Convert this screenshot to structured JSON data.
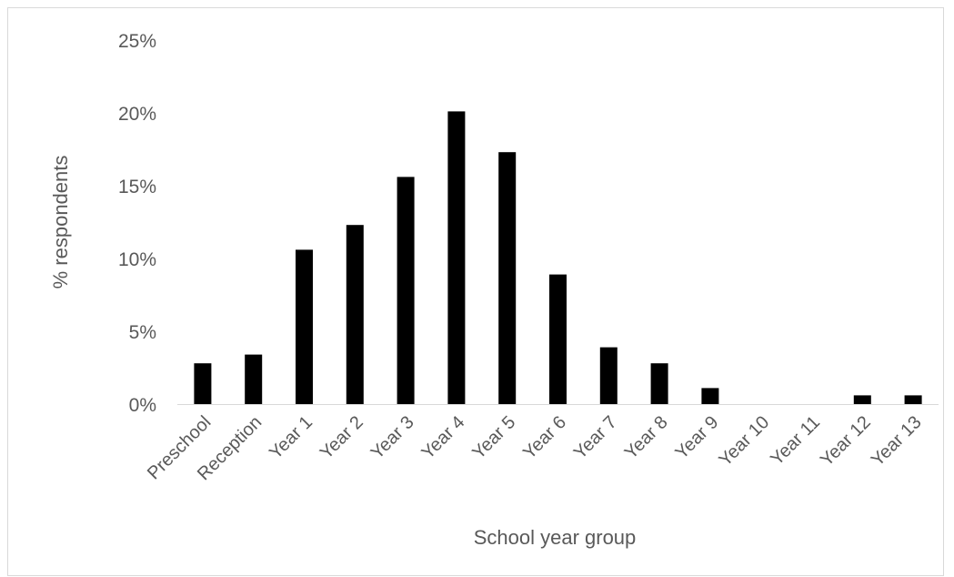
{
  "chart_data": {
    "type": "bar",
    "title": "",
    "xlabel": "School year group",
    "ylabel": "% respondents",
    "categories": [
      "Preschool",
      "Reception",
      "Year 1",
      "Year 2",
      "Year 3",
      "Year 4",
      "Year 5",
      "Year 6",
      "Year 7",
      "Year 8",
      "Year 9",
      "Year 10",
      "Year 11",
      "Year 12",
      "Year 13"
    ],
    "values": [
      2.8,
      3.4,
      10.6,
      12.3,
      15.6,
      20.1,
      17.3,
      8.9,
      3.9,
      2.8,
      1.1,
      0,
      0,
      0.6,
      0.6
    ],
    "ylim": [
      0,
      25
    ],
    "yticks": [
      0,
      5,
      10,
      15,
      20,
      25
    ],
    "ytick_labels": [
      "0%",
      "5%",
      "10%",
      "15%",
      "20%",
      "25%"
    ],
    "grid": false,
    "legend": "none",
    "colors": {
      "bar": "#000000",
      "axis": "#d9d9d9",
      "text": "#595959"
    }
  }
}
